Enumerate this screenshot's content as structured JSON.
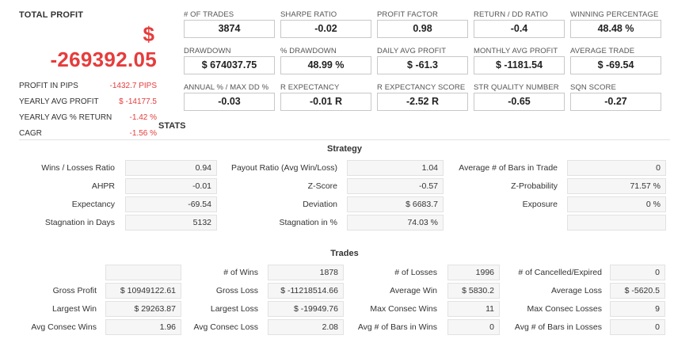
{
  "total_profit": {
    "label": "TOTAL PROFIT",
    "currency": "$",
    "value": "-269392.05"
  },
  "side_stats": [
    {
      "label": "PROFIT IN PIPS",
      "value": "-1432.7 PIPS"
    },
    {
      "label": "YEARLY AVG PROFIT",
      "value": "$ -14177.5"
    },
    {
      "label": "YEARLY AVG % RETURN",
      "value": "-1.42 %"
    },
    {
      "label": "CAGR",
      "value": "-1.56 %"
    }
  ],
  "kpis": [
    {
      "label": "# OF TRADES",
      "value": "3874"
    },
    {
      "label": "SHARPE RATIO",
      "value": "-0.02"
    },
    {
      "label": "PROFIT FACTOR",
      "value": "0.98"
    },
    {
      "label": "RETURN / DD RATIO",
      "value": "-0.4"
    },
    {
      "label": "WINNING PERCENTAGE",
      "value": "48.48 %"
    },
    {
      "label": "DRAWDOWN",
      "value": "$ 674037.75"
    },
    {
      "label": "% DRAWDOWN",
      "value": "48.99 %"
    },
    {
      "label": "DAILY AVG PROFIT",
      "value": "$ -61.3"
    },
    {
      "label": "MONTHLY AVG PROFIT",
      "value": "$ -1181.54"
    },
    {
      "label": "AVERAGE TRADE",
      "value": "$ -69.54"
    },
    {
      "label": "ANNUAL % / MAX DD %",
      "value": "-0.03"
    },
    {
      "label": "R EXPECTANCY",
      "value": "-0.01 R"
    },
    {
      "label": "R EXPECTANCY SCORE",
      "value": "-2.52 R"
    },
    {
      "label": "STR QUALITY NUMBER",
      "value": "-0.65"
    },
    {
      "label": "SQN SCORE",
      "value": "-0.27"
    }
  ],
  "stats_title": "STATS",
  "strategy": {
    "title": "Strategy",
    "rows": [
      [
        {
          "label": "Wins / Losses Ratio",
          "value": "0.94"
        },
        {
          "label": "Payout Ratio (Avg Win/Loss)",
          "value": "1.04"
        },
        {
          "label": "Average # of Bars in Trade",
          "value": "0"
        }
      ],
      [
        {
          "label": "AHPR",
          "value": "-0.01"
        },
        {
          "label": "Z-Score",
          "value": "-0.57"
        },
        {
          "label": "Z-Probability",
          "value": "71.57 %"
        }
      ],
      [
        {
          "label": "Expectancy",
          "value": "-69.54"
        },
        {
          "label": "Deviation",
          "value": "$ 6683.7"
        },
        {
          "label": "Exposure",
          "value": "0 %"
        }
      ],
      [
        {
          "label": "Stagnation in Days",
          "value": "5132"
        },
        {
          "label": "Stagnation in %",
          "value": "74.03 %"
        },
        {
          "label": "",
          "value": ""
        }
      ]
    ]
  },
  "trades": {
    "title": "Trades",
    "rows": [
      [
        {
          "label": "",
          "value": ""
        },
        {
          "label": "# of Wins",
          "value": "1878"
        },
        {
          "label": "# of Losses",
          "value": "1996"
        },
        {
          "label": "# of Cancelled/Expired",
          "value": "0"
        }
      ],
      [
        {
          "label": "Gross Profit",
          "value": "$ 10949122.61"
        },
        {
          "label": "Gross Loss",
          "value": "$ -11218514.66"
        },
        {
          "label": "Average Win",
          "value": "$ 5830.2"
        },
        {
          "label": "Average Loss",
          "value": "$ -5620.5"
        }
      ],
      [
        {
          "label": "Largest Win",
          "value": "$ 29263.87"
        },
        {
          "label": "Largest Loss",
          "value": "$ -19949.76"
        },
        {
          "label": "Max Consec Wins",
          "value": "11"
        },
        {
          "label": "Max Consec Losses",
          "value": "9"
        }
      ],
      [
        {
          "label": "Avg Consec Wins",
          "value": "1.96"
        },
        {
          "label": "Avg Consec Loss",
          "value": "2.08"
        },
        {
          "label": "Avg # of Bars in Wins",
          "value": "0"
        },
        {
          "label": "Avg # of Bars in Losses",
          "value": "0"
        }
      ]
    ]
  }
}
